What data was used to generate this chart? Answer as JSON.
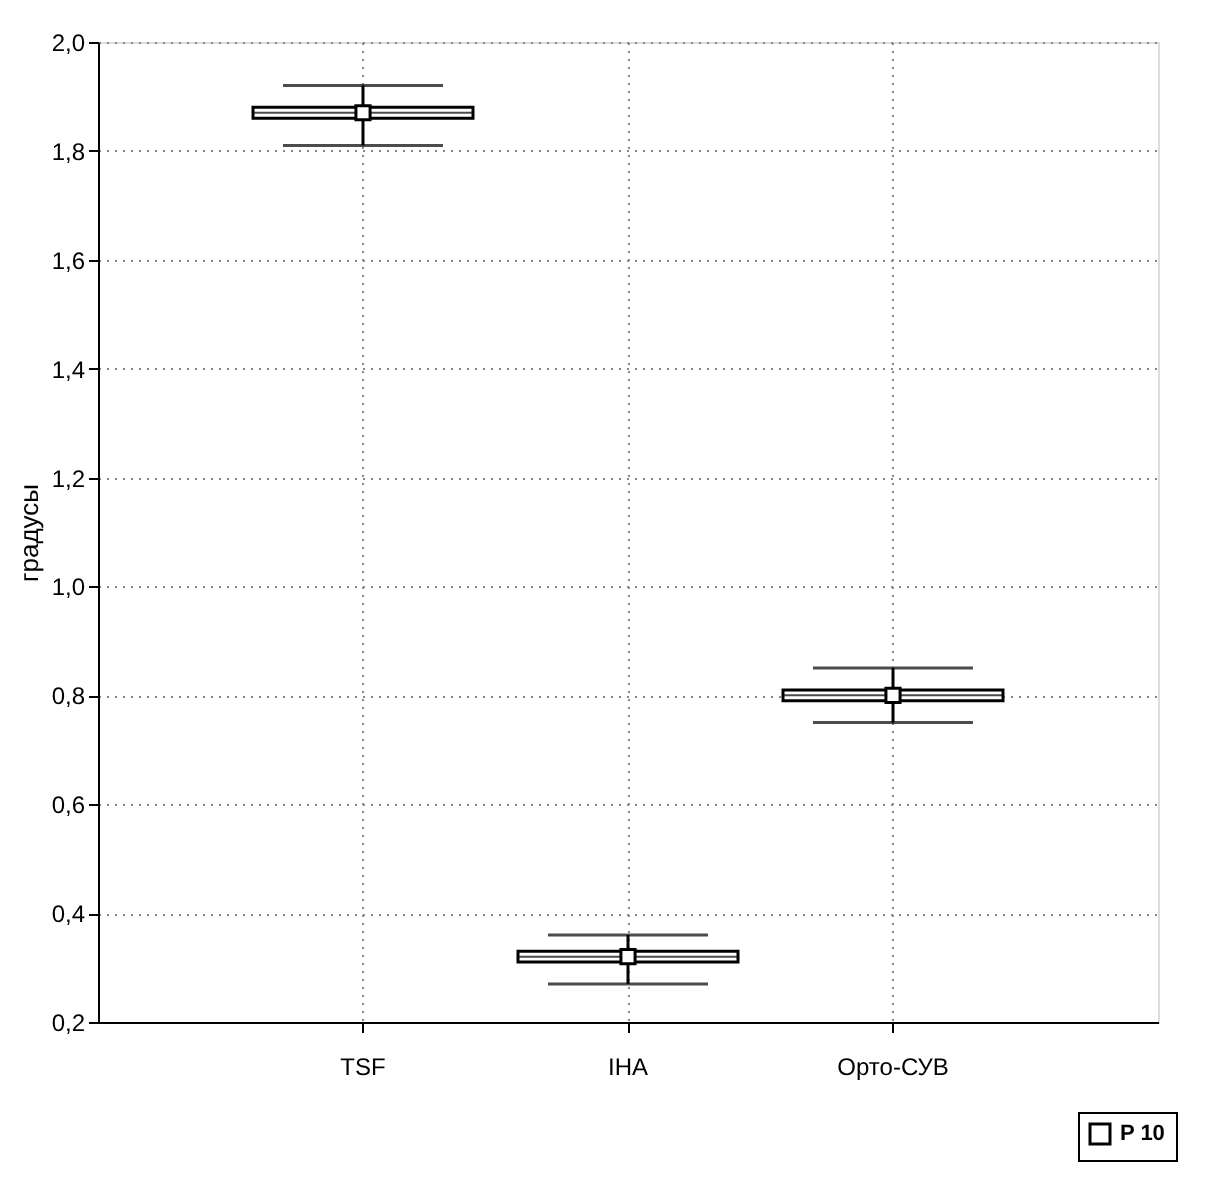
{
  "chart_data": {
    "type": "box",
    "ylabel": "градусы",
    "categories": [
      "TSF",
      "IHA",
      "Орто-СУВ"
    ],
    "series": [
      {
        "name": "P 10",
        "color": "#000000",
        "boxes": [
          {
            "low": 1.81,
            "q1": 1.86,
            "median": 1.87,
            "q3": 1.88,
            "high": 1.92,
            "mean": 1.87
          },
          {
            "low": 0.27,
            "q1": 0.31,
            "median": 0.32,
            "q3": 0.33,
            "high": 0.36,
            "mean": 0.32
          },
          {
            "low": 0.75,
            "q1": 0.79,
            "median": 0.8,
            "q3": 0.81,
            "high": 0.85,
            "mean": 0.8
          }
        ]
      }
    ],
    "ylim": [
      0.2,
      2.0
    ],
    "yticks": [
      {
        "value": 0.2,
        "label": "0,2"
      },
      {
        "value": 0.4,
        "label": "0,4"
      },
      {
        "value": 0.6,
        "label": "0,6"
      },
      {
        "value": 0.8,
        "label": "0,8"
      },
      {
        "value": 1.0,
        "label": "1,0"
      },
      {
        "value": 1.2,
        "label": "1,2"
      },
      {
        "value": 1.4,
        "label": "1,4"
      },
      {
        "value": 1.6,
        "label": "1,6"
      },
      {
        "value": 1.8,
        "label": "1,8"
      },
      {
        "value": 2.0,
        "label": "2,0"
      }
    ],
    "grid": true,
    "legend": "bottom right",
    "marker": "square"
  }
}
